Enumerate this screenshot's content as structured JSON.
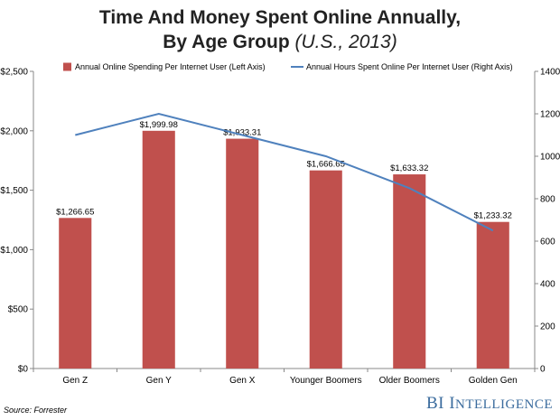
{
  "title": {
    "main": "Time And Money Spent Online Annually,",
    "line2_main": "By Age Group",
    "line2_sub": "(U.S., 2013)"
  },
  "source": "Source: Forrester",
  "brand": {
    "part1": "BI ",
    "part2_initial": "I",
    "part2_rest": "NTELLIGENCE"
  },
  "colors": {
    "bar": "#c0504d",
    "line": "#4f81bd"
  },
  "chart_data": {
    "type": "bar",
    "categories": [
      "Gen Z",
      "Gen Y",
      "Gen X",
      "Younger Boomers",
      "Older Boomers",
      "Golden Gen"
    ],
    "series": [
      {
        "name": "Annual Online Spending Per Internet User (Left Axis)",
        "type": "bar",
        "axis": "left",
        "values": [
          1266.65,
          1999.98,
          1933.31,
          1666.65,
          1633.32,
          1233.32
        ],
        "labels": [
          "$1,266.65",
          "$1,999.98",
          "$1,933.31",
          "$1,666.65",
          "$1,633.32",
          "$1,233.32"
        ]
      },
      {
        "name": "Annual Hours Spent Online Per Internet User (Right Axis)",
        "type": "line",
        "axis": "right",
        "values": [
          1100,
          1200,
          1100,
          1000,
          850,
          650
        ]
      }
    ],
    "left_axis": {
      "ylim": [
        0,
        2500
      ],
      "ticks": [
        0,
        500,
        1000,
        1500,
        2000,
        2500
      ],
      "tick_labels": [
        "$0",
        "$500",
        "$1,000",
        "$1,500",
        "$2,000",
        "$2,500"
      ]
    },
    "right_axis": {
      "ylim": [
        0,
        1400
      ],
      "ticks": [
        0,
        200,
        400,
        600,
        800,
        1000,
        1200,
        1400
      ],
      "tick_labels": [
        "0",
        "200",
        "400",
        "600",
        "800",
        "1000",
        "1200",
        "1400"
      ]
    },
    "legend": "top",
    "grid": false
  }
}
